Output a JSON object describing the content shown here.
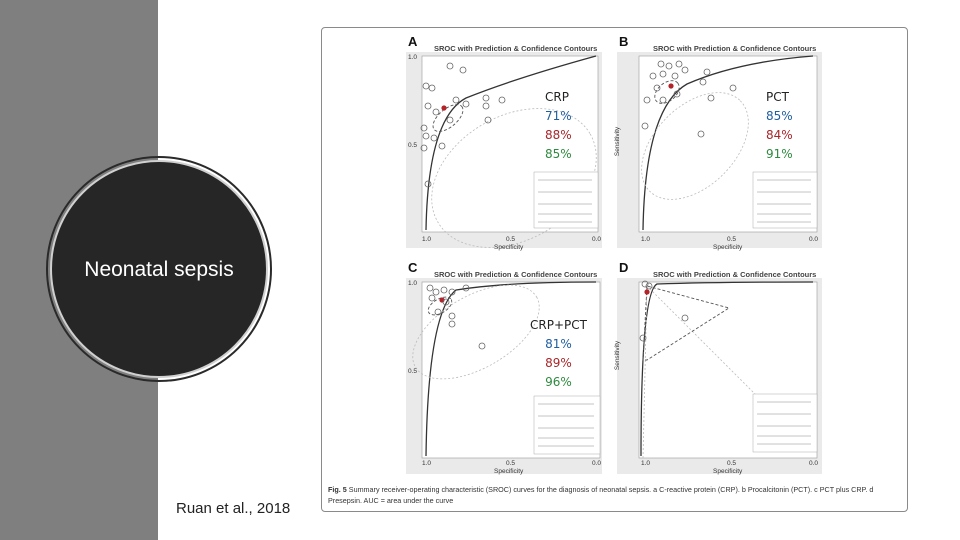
{
  "slide": {
    "circle_title": "Neonatal sepsis",
    "citation": "Ruan et al., 2018"
  },
  "figure": {
    "panels": [
      {
        "letter": "A",
        "title": "SROC with Prediction & Confidence Contours",
        "x_label": "Specificity",
        "y_label": "Sensitivity"
      },
      {
        "letter": "B",
        "title": "SROC with Prediction & Confidence Contours",
        "x_label": "Specificity",
        "y_label": "Sensitivity"
      },
      {
        "letter": "C",
        "title": "SROC with Prediction & Confidence Contours",
        "x_label": "Specificity",
        "y_label": "Sensitivity"
      },
      {
        "letter": "D",
        "title": "SROC with Prediction & Confidence Contours",
        "x_label": "Specificity",
        "y_label": "Sensitivity"
      }
    ],
    "x_ticks": [
      "1.0",
      "0.5",
      "0.0"
    ],
    "y_ticks": [
      "1.0",
      "0.5"
    ],
    "legend": [
      "Observed Data",
      "Summary Operating Point",
      "SROC Curve",
      "95% Confidence Contour",
      "95% Prediction Contour"
    ],
    "caption_label": "Fig. 5",
    "caption_text": "Summary receiver-operating characteristic (SROC) curves for the diagnosis of neonatal sepsis. a C-reactive protein (CRP). b Procalcitonin (PCT). c PCT plus CRP. d Presepsin. AUC = area under the curve"
  },
  "stats": [
    {
      "name": "CRP",
      "sensitivity": "71%",
      "specificity": "88%",
      "auc": "85%"
    },
    {
      "name": "PCT",
      "sensitivity": "85%",
      "specificity": "84%",
      "auc": "91%"
    },
    {
      "name": "CRP+PCT",
      "sensitivity": "81%",
      "specificity": "89%",
      "auc": "96%"
    }
  ],
  "colors": {
    "sidebar": "#7f7f7f",
    "circle": "#262626",
    "sensitivity": "#1f5fa0",
    "specificity": "#a8262a",
    "auc": "#2e8a3e"
  }
}
